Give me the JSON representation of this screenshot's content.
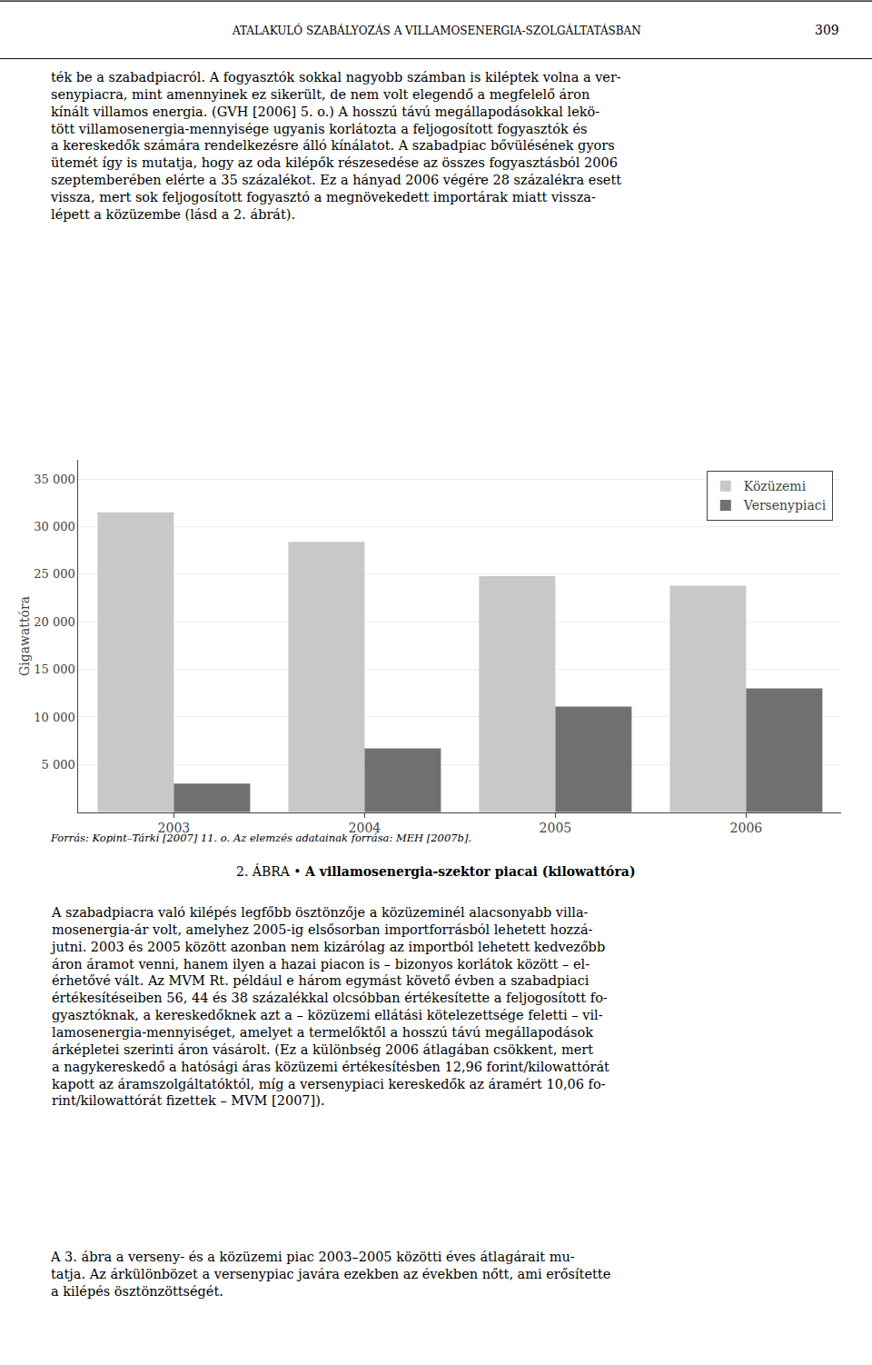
{
  "chart_data": {
    "type": "bar",
    "title": "2. ÁBRA • A villamosenergia-szektor piacai (kilowattóra)",
    "ylabel": "Gigawattóra",
    "categories": [
      "2003",
      "2004",
      "2005",
      "2006"
    ],
    "series": [
      {
        "name": "Közüzemi",
        "color": "#c8c8c8",
        "values": [
          31500,
          28400,
          24800,
          23800
        ]
      },
      {
        "name": "Versenypiaci",
        "color": "#707070",
        "values": [
          3000,
          6700,
          11100,
          13000
        ]
      }
    ],
    "ylim": [
      0,
      37000
    ],
    "yticks": [
      {
        "value": 5000,
        "label": "5 000"
      },
      {
        "value": 10000,
        "label": "10 000"
      },
      {
        "value": 15000,
        "label": "15 000"
      },
      {
        "value": 20000,
        "label": "20 000"
      },
      {
        "value": 25000,
        "label": "25 000"
      },
      {
        "value": 30000,
        "label": "30 000"
      },
      {
        "value": 35000,
        "label": "35 000"
      }
    ],
    "grid": true,
    "legend": "upper right",
    "annotations": [
      "ATALAKULÓ SZABÁLYOZÁS A VILLAMOSENERGIA-SZOLGÁLTATÁSBAN",
      "309",
      "ték be a szabadpiacról. A fogyasztók sokkal nagyobb számban is kiléptek volna a ver-\nsenypiacra, mint amennyinek ez sikerült, de nem volt elegendő a megfelelő áron\nkínált villamos energia. (GVH [2006] 5. o.) A hosszú távú megállapodásokkal lekö-\ntött villamosenergia-mennyisége ugyanis korlátozta a feljogosított fogyasztók és\na kereskedők számára rendelkezésre álló kínálatot. A szabadpiac bővülésének gyors\nütemét így is mutatja, hogy az oda kilépők részesedése az összes fogyasztásból 2006\nszeptemberében elérte a 35 százalékot. Ez a hányad 2006 végére 28 százalékra esett\nvissza, mert sok feljogosított fogyasztó a megnövekedett importárak miatt vissza-\nlépett a közüzembe (lásd a 2. ábrát).",
      "Forrás: Kopint–Tárki [2007] 11. o. Az elemzés adatainak forrása: MEH [2007b].",
      "A szabadpiacra való kilépés legfőbb ösztönzője a közüzeminél alacsonyabb villa-\nmosenergia-ár volt, amelyhez 2005-ig elsősorban importforrásból lehetett hozzá-\njutni. 2003 és 2005 között azonban nem kizárólag az importból lehetett kedvezőbb\náron áramot venni, hanem ilyen a hazai piacon is – bizonyos korlátok között – el-\nérhetővé vált. Az MVM Rt. például e három egymást követő évben a szabadpiaci\nértékesítéseiben 56, 44 és 38 százalékkal olcsóbban értékesítette a feljogosított fo-\ngyasztóknak, a kereskedőknek azt a – közüzemi ellátási kötelezettsége feletti – vil-\nlamosenergia-mennyiséget, amelyet a termelőktől a hosszú távú megállapodások\nárképletei szerinti áron vásárolt. (Ez a különbség 2006 átlagában csökkent, mert\na nagykereskedő a hatósági áras közüzemi értékesítésben 12,96 forint/kilowattórát\nkapott az áramszolgáltatóktól, míg a versenypiaci kereskedők az áramért 10,06 fo-\nrint/kilowattórát fizettek – MVM [2007]).",
      "A 3. ábra a verseny- és a közüzemi piac 2003–2005 közötti éves átlagárait mu-\ntatja. Az árkülönbözet a versenypiac javára ezekben az években nőtt, ami erősítette\na kilépés ösztönzöttségét."
    ]
  }
}
